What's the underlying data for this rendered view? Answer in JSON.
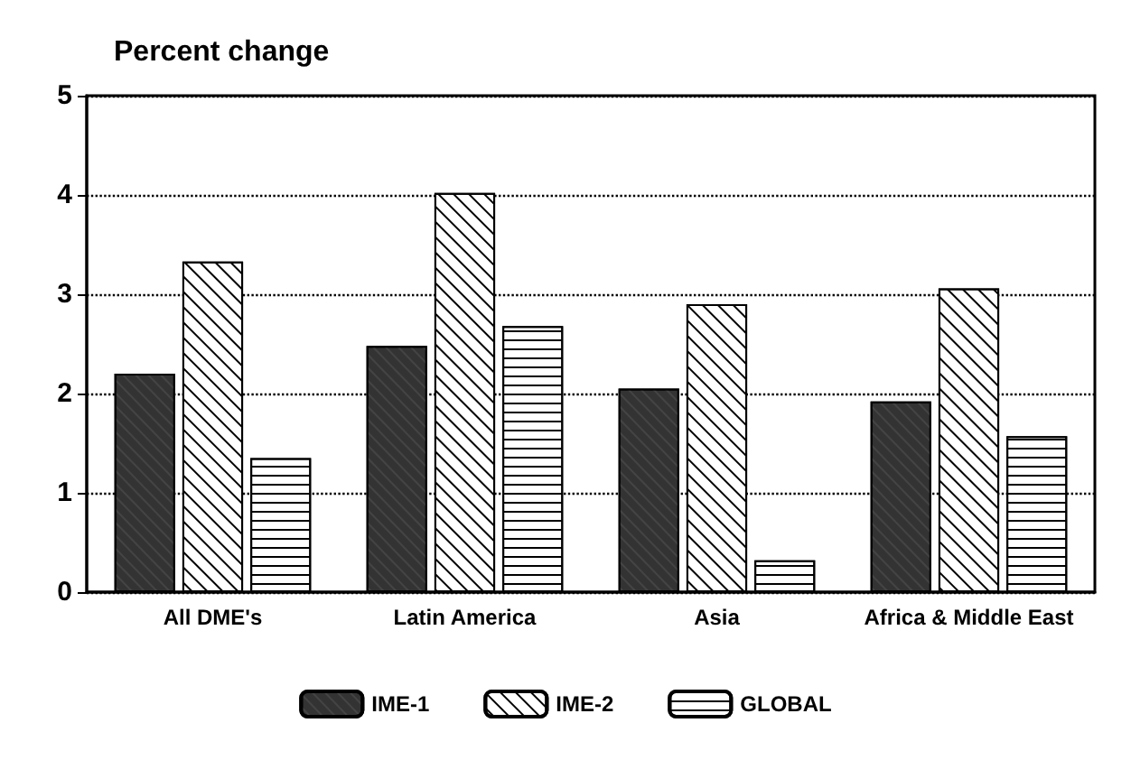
{
  "chart_data": {
    "type": "bar",
    "ylabel": "Percent change",
    "categories": [
      "All DME's",
      "Latin America",
      "Asia",
      "Africa & Middle East"
    ],
    "series": [
      {
        "name": "IME-1",
        "color": "#333333",
        "values": [
          2.2,
          2.48,
          2.05,
          1.92
        ]
      },
      {
        "name": "IME-2",
        "color": "#ffffff",
        "values": [
          3.33,
          4.02,
          2.9,
          3.06
        ]
      },
      {
        "name": "GLOBAL",
        "color": "#ffffff",
        "values": [
          1.35,
          2.68,
          0.32,
          1.57
        ]
      }
    ],
    "ylim": [
      0,
      5
    ],
    "yticks": [
      0,
      1,
      2,
      3,
      4,
      5
    ],
    "grid": "y",
    "legend": "bottom"
  }
}
